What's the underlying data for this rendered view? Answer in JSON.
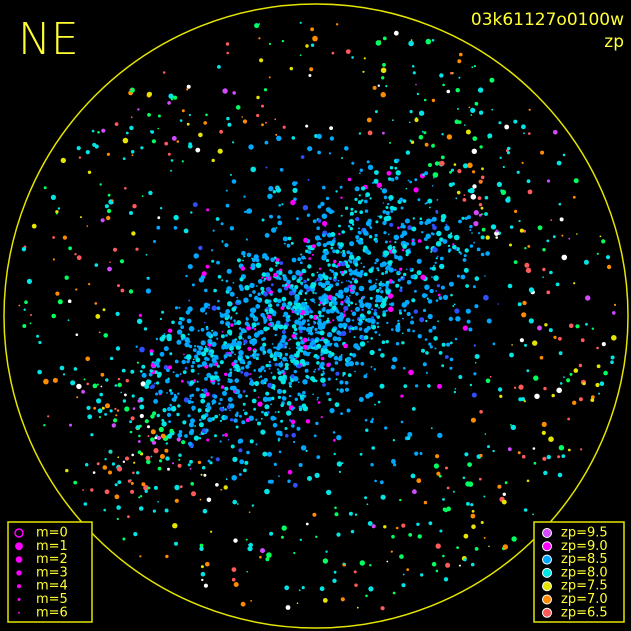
{
  "header": {
    "direction": "NE",
    "frame": "03k61127o0100w",
    "mode": "zp"
  },
  "magnitude_legend": {
    "labels": [
      "m=0",
      "m=1",
      "m=2",
      "m=3",
      "m=4",
      "m=5",
      "m=6"
    ],
    "color": "#ff00ff"
  },
  "zp_legend": [
    {
      "label": "zp=9.5",
      "color": "#d24bff"
    },
    {
      "label": "zp=9.0",
      "color": "#ff00ff"
    },
    {
      "label": "zp=8.5",
      "color": "#00a8ff"
    },
    {
      "label": "zp=8.0",
      "color": "#00e5e5"
    },
    {
      "label": "zp=7.5",
      "color": "#e5e500"
    },
    {
      "label": "zp=7.0",
      "color": "#ff8c00"
    },
    {
      "label": "zp=6.5",
      "color": "#ff5a5a"
    }
  ]
}
